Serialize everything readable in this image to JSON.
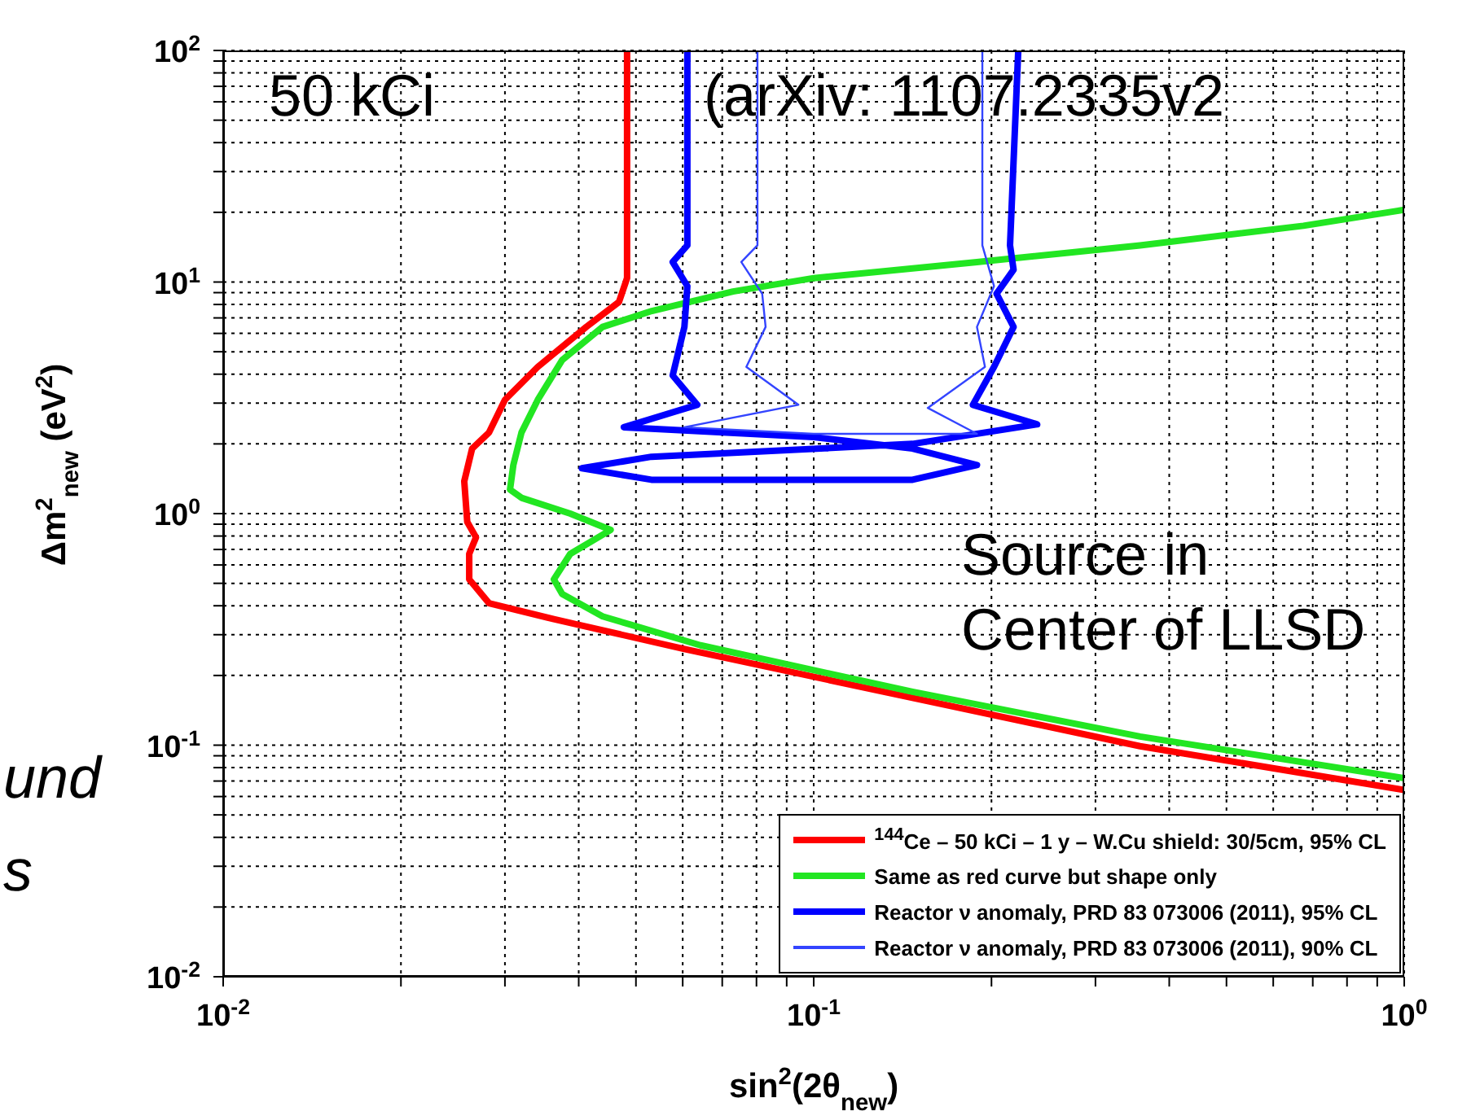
{
  "chart_data": {
    "type": "line",
    "xlabel": "sin$^{2}$(2θ$_{new}$)",
    "ylabel": "Δm$^{2}$$_{new}$ (eV$^{2}$)",
    "log": "xy",
    "grid": true,
    "legend": "bottom right",
    "xlim": [
      0.01,
      1
    ],
    "ylim": [
      0.01,
      100
    ],
    "xticks": [
      {
        "value": 0.01,
        "label": "10$^{-2}$"
      },
      {
        "value": 0.02,
        "label": null
      },
      {
        "value": 0.03,
        "label": null
      },
      {
        "value": 0.04,
        "label": null
      },
      {
        "value": 0.05,
        "label": null
      },
      {
        "value": 0.06,
        "label": null
      },
      {
        "value": 0.07,
        "label": null
      },
      {
        "value": 0.08,
        "label": null
      },
      {
        "value": 0.09,
        "label": null
      },
      {
        "value": 0.1,
        "label": "10$^{-1}$"
      },
      {
        "value": 0.2,
        "label": null
      },
      {
        "value": 0.3,
        "label": null
      },
      {
        "value": 0.4,
        "label": null
      },
      {
        "value": 0.5,
        "label": null
      },
      {
        "value": 0.6,
        "label": null
      },
      {
        "value": 0.7,
        "label": null
      },
      {
        "value": 0.8,
        "label": null
      },
      {
        "value": 0.9,
        "label": null
      },
      {
        "value": 1,
        "label": "10$^{0}$"
      }
    ],
    "yticks": [
      {
        "value": 0.01,
        "label": "10$^{-2}$"
      },
      {
        "value": 0.02,
        "label": null
      },
      {
        "value": 0.03,
        "label": null
      },
      {
        "value": 0.04,
        "label": null
      },
      {
        "value": 0.05,
        "label": null
      },
      {
        "value": 0.06,
        "label": null
      },
      {
        "value": 0.07,
        "label": null
      },
      {
        "value": 0.08,
        "label": null
      },
      {
        "value": 0.09,
        "label": null
      },
      {
        "value": 0.1,
        "label": "10$^{-1}$"
      },
      {
        "value": 0.2,
        "label": null
      },
      {
        "value": 0.3,
        "label": null
      },
      {
        "value": 0.4,
        "label": null
      },
      {
        "value": 0.5,
        "label": null
      },
      {
        "value": 0.6,
        "label": null
      },
      {
        "value": 0.7,
        "label": null
      },
      {
        "value": 0.8,
        "label": null
      },
      {
        "value": 0.9,
        "label": null
      },
      {
        "value": 1,
        "label": "10$^{0}$"
      },
      {
        "value": 2,
        "label": null
      },
      {
        "value": 3,
        "label": null
      },
      {
        "value": 4,
        "label": null
      },
      {
        "value": 5,
        "label": null
      },
      {
        "value": 6,
        "label": null
      },
      {
        "value": 7,
        "label": null
      },
      {
        "value": 8,
        "label": null
      },
      {
        "value": 9,
        "label": null
      },
      {
        "value": 10,
        "label": "10$^{1}$"
      },
      {
        "value": 20,
        "label": null
      },
      {
        "value": 30,
        "label": null
      },
      {
        "value": 40,
        "label": null
      },
      {
        "value": 50,
        "label": null
      },
      {
        "value": 60,
        "label": null
      },
      {
        "value": 70,
        "label": null
      },
      {
        "value": 80,
        "label": null
      },
      {
        "value": 90,
        "label": null
      },
      {
        "value": 100,
        "label": "10$^{2}$"
      }
    ],
    "series": [
      {
        "name": "$^{144}$Ce – 50 kCi – 1 y – W.Cu shield: 30/5cm, 95% CL",
        "color": "#ff0000",
        "x": [
          0.0483,
          0.0483,
          0.0468,
          0.0412,
          0.0341,
          0.03,
          0.0282,
          0.0264,
          0.0256,
          0.0259,
          0.0268,
          0.0261,
          0.0261,
          0.0282,
          0.0363,
          0.0604,
          0.147,
          0.357,
          1.0
        ],
        "values": [
          100,
          10.4,
          8.2,
          6.4,
          4.3,
          3.1,
          2.24,
          1.91,
          1.38,
          0.92,
          0.79,
          0.67,
          0.52,
          0.41,
          0.35,
          0.26,
          0.16,
          0.099,
          0.064
        ]
      },
      {
        "name": "Same as red curve but shape only",
        "color": "#22e622",
        "x": [
          1.0,
          0.675,
          0.357,
          0.189,
          0.1,
          0.073,
          0.0532,
          0.0439,
          0.0375,
          0.0341,
          0.032,
          0.031,
          0.0306,
          0.032,
          0.0387,
          0.0453,
          0.0387,
          0.0363,
          0.0375,
          0.0439,
          0.0643,
          0.147,
          0.357,
          1.0
        ],
        "values": [
          20.5,
          17.5,
          14.4,
          12.2,
          10.4,
          9.1,
          7.5,
          6.4,
          4.6,
          3.1,
          2.24,
          1.62,
          1.27,
          1.17,
          1.0,
          0.85,
          0.67,
          0.52,
          0.45,
          0.36,
          0.27,
          0.17,
          0.109,
          0.072
        ]
      },
      {
        "name": "Reactor ν anomaly, PRD 83 073006 (2011), 95% CL",
        "color": "#0000ff",
        "x": [
          0.0611,
          0.0611,
          0.0577,
          0.0611,
          0.0604,
          0.0577,
          0.0635,
          0.0477,
          0.1,
          0.147,
          0.189,
          0.147,
          0.0531,
          0.0405,
          0.0531,
          0.147,
          0.239,
          0.186,
          0.202,
          0.218,
          0.204,
          0.218,
          0.215,
          0.222
        ],
        "values": [
          100,
          14.4,
          12.2,
          9.6,
          6.4,
          3.95,
          2.95,
          2.36,
          2.14,
          1.91,
          1.62,
          1.4,
          1.4,
          1.57,
          1.76,
          2.0,
          2.43,
          2.95,
          4.3,
          6.4,
          8.9,
          11.3,
          14.4,
          100
        ]
      },
      {
        "name": "Reactor ν anomaly, PRD 83 073006 (2011), 90% CL",
        "color": "#3344ff",
        "x": [
          0.0803,
          0.0803,
          0.0754,
          0.0818,
          0.0829,
          0.0769,
          0.0942,
          0.0604,
          0.1,
          0.189,
          0.156,
          0.195,
          0.189,
          0.202,
          0.193,
          0.193
        ],
        "values": [
          100,
          14.4,
          12.2,
          8.9,
          6.4,
          4.3,
          2.95,
          2.36,
          2.21,
          2.21,
          2.86,
          4.3,
          6.4,
          9.6,
          14.4,
          100
        ]
      }
    ],
    "annotations": [
      "50 kCi",
      "(arXiv: 1107.2335v2",
      "Source in Center of LLSD",
      "und",
      "s"
    ]
  }
}
